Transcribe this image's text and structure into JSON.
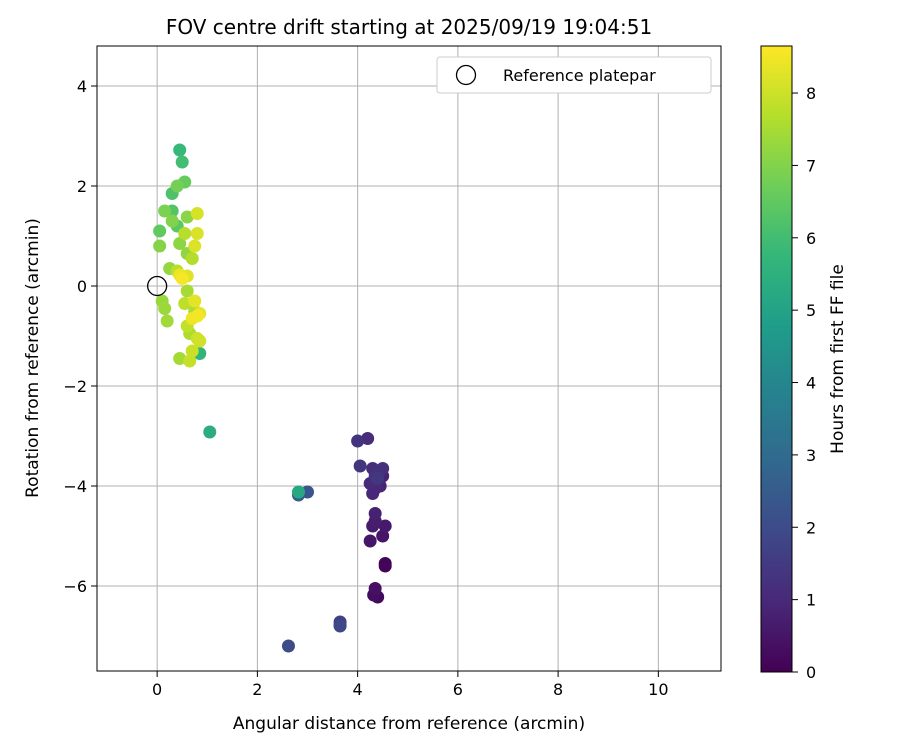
{
  "chart_data": {
    "type": "scatter",
    "title": "FOV centre drift starting at 2025/09/19 19:04:51",
    "xlabel": "Angular distance from reference (arcmin)",
    "ylabel": "Rotation from reference (arcmin)",
    "xlim": [
      -1.2,
      11.25
    ],
    "ylim": [
      -7.7,
      4.8
    ],
    "xticks": [
      0,
      2,
      4,
      6,
      8,
      10
    ],
    "yticks": [
      -6,
      -4,
      -2,
      0,
      2,
      4
    ],
    "grid": true,
    "legend": {
      "position": "top-right",
      "entries": [
        "Reference platepar"
      ]
    },
    "reference_point": {
      "x": 0,
      "y": 0,
      "label": "Reference platepar"
    },
    "colorbar": {
      "label": "Hours from first FF file",
      "colormap": "viridis",
      "min": 0,
      "max": 8.65,
      "ticks": [
        0,
        1,
        2,
        3,
        4,
        5,
        6,
        7,
        8
      ]
    },
    "series": [
      {
        "name": "FOV centre drift",
        "points": [
          {
            "x": 4.55,
            "y": -5.6,
            "h": 0.05
          },
          {
            "x": 4.55,
            "y": -5.55,
            "h": 0.1
          },
          {
            "x": 4.4,
            "y": -6.22,
            "h": 0.2
          },
          {
            "x": 4.32,
            "y": -6.18,
            "h": 0.3
          },
          {
            "x": 4.35,
            "y": -6.05,
            "h": 0.4
          },
          {
            "x": 4.5,
            "y": -5.0,
            "h": 0.5
          },
          {
            "x": 4.25,
            "y": -5.1,
            "h": 0.55
          },
          {
            "x": 4.55,
            "y": -4.8,
            "h": 0.6
          },
          {
            "x": 4.3,
            "y": -4.8,
            "h": 0.65
          },
          {
            "x": 4.35,
            "y": -4.7,
            "h": 0.7
          },
          {
            "x": 4.35,
            "y": -4.55,
            "h": 0.8
          },
          {
            "x": 4.5,
            "y": -3.8,
            "h": 0.85
          },
          {
            "x": 4.45,
            "y": -4.0,
            "h": 0.9
          },
          {
            "x": 4.3,
            "y": -4.15,
            "h": 0.95
          },
          {
            "x": 4.35,
            "y": -4.05,
            "h": 1.0
          },
          {
            "x": 4.25,
            "y": -3.95,
            "h": 1.05
          },
          {
            "x": 4.2,
            "y": -3.05,
            "h": 1.1
          },
          {
            "x": 4.3,
            "y": -3.65,
            "h": 1.15
          },
          {
            "x": 4.5,
            "y": -3.65,
            "h": 1.2
          },
          {
            "x": 4.35,
            "y": -3.8,
            "h": 1.25
          },
          {
            "x": 4.0,
            "y": -3.1,
            "h": 1.3
          },
          {
            "x": 4.05,
            "y": -3.6,
            "h": 1.35
          },
          {
            "x": 4.4,
            "y": -3.85,
            "h": 1.4
          },
          {
            "x": 3.65,
            "y": -6.78,
            "h": 1.6
          },
          {
            "x": 3.65,
            "y": -6.72,
            "h": 1.7
          },
          {
            "x": 3.65,
            "y": -6.8,
            "h": 1.85
          },
          {
            "x": 2.62,
            "y": -7.2,
            "h": 2.0
          },
          {
            "x": 3.0,
            "y": -4.12,
            "h": 2.3
          },
          {
            "x": 2.82,
            "y": -4.18,
            "h": 2.55
          },
          {
            "x": 2.82,
            "y": -4.12,
            "h": 5.2
          },
          {
            "x": 1.05,
            "y": -2.92,
            "h": 5.4
          },
          {
            "x": 0.85,
            "y": -1.35,
            "h": 5.6
          },
          {
            "x": 0.45,
            "y": 2.72,
            "h": 5.8
          },
          {
            "x": 0.5,
            "y": 2.48,
            "h": 6.0
          },
          {
            "x": 0.3,
            "y": 1.85,
            "h": 6.2
          },
          {
            "x": 0.3,
            "y": 1.5,
            "h": 6.3
          },
          {
            "x": 0.4,
            "y": 1.2,
            "h": 6.4
          },
          {
            "x": 0.05,
            "y": 1.1,
            "h": 6.5
          },
          {
            "x": 0.55,
            "y": 2.08,
            "h": 6.6
          },
          {
            "x": 0.4,
            "y": 2.0,
            "h": 6.8
          },
          {
            "x": 0.15,
            "y": 1.5,
            "h": 6.9
          },
          {
            "x": 0.3,
            "y": 1.3,
            "h": 7.0
          },
          {
            "x": 0.05,
            "y": 0.8,
            "h": 7.05
          },
          {
            "x": 0.6,
            "y": 1.38,
            "h": 7.1
          },
          {
            "x": 0.45,
            "y": 0.85,
            "h": 7.15
          },
          {
            "x": 0.6,
            "y": 0.65,
            "h": 7.2
          },
          {
            "x": 0.25,
            "y": 0.35,
            "h": 7.25
          },
          {
            "x": 0.1,
            "y": -0.3,
            "h": 7.3
          },
          {
            "x": 0.15,
            "y": -0.45,
            "h": 7.35
          },
          {
            "x": 0.2,
            "y": -0.7,
            "h": 7.4
          },
          {
            "x": 0.45,
            "y": -1.45,
            "h": 7.45
          },
          {
            "x": 0.6,
            "y": -0.1,
            "h": 7.5
          },
          {
            "x": 0.75,
            "y": -0.5,
            "h": 7.55
          },
          {
            "x": 0.65,
            "y": -0.95,
            "h": 7.6
          },
          {
            "x": 0.7,
            "y": 0.55,
            "h": 7.65
          },
          {
            "x": 0.55,
            "y": 1.05,
            "h": 7.7
          },
          {
            "x": 0.4,
            "y": 0.3,
            "h": 7.75
          },
          {
            "x": 0.55,
            "y": -0.35,
            "h": 7.8
          },
          {
            "x": 0.6,
            "y": -0.8,
            "h": 7.85
          },
          {
            "x": 0.65,
            "y": -1.5,
            "h": 7.9
          },
          {
            "x": 0.7,
            "y": -1.3,
            "h": 7.95
          },
          {
            "x": 0.8,
            "y": -1.05,
            "h": 8.0
          },
          {
            "x": 0.85,
            "y": -1.1,
            "h": 8.05
          },
          {
            "x": 0.8,
            "y": 1.45,
            "h": 8.1
          },
          {
            "x": 0.8,
            "y": 1.05,
            "h": 8.15
          },
          {
            "x": 0.75,
            "y": 0.8,
            "h": 8.2
          },
          {
            "x": 0.6,
            "y": 0.2,
            "h": 8.25
          },
          {
            "x": 0.75,
            "y": -0.3,
            "h": 8.3
          },
          {
            "x": 0.85,
            "y": -0.55,
            "h": 8.35
          },
          {
            "x": 0.45,
            "y": 0.22,
            "h": 8.4
          },
          {
            "x": 0.7,
            "y": -0.65,
            "h": 8.45
          },
          {
            "x": 0.8,
            "y": -0.6,
            "h": 8.5
          },
          {
            "x": 0.5,
            "y": 0.15,
            "h": 8.55
          }
        ]
      }
    ]
  }
}
